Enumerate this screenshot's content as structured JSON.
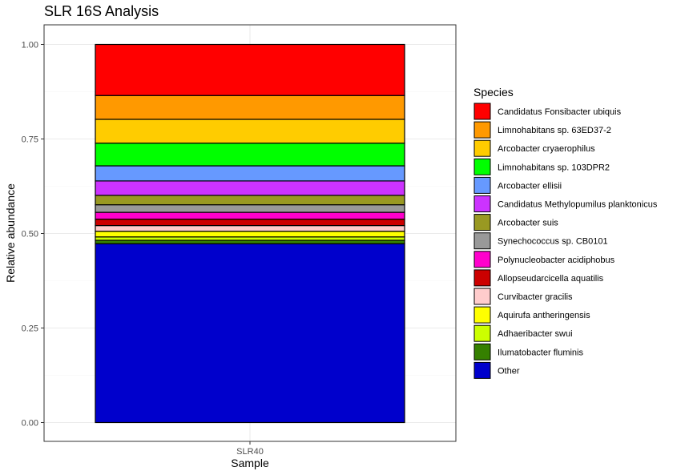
{
  "chart_data": {
    "type": "bar",
    "stacked": true,
    "title": "SLR 16S Analysis",
    "xlabel": "Sample",
    "ylabel": "Relative abundance",
    "categories": [
      "SLR40"
    ],
    "ylim": [
      0,
      1.05
    ],
    "yticks": [
      "0.00",
      "0.25",
      "0.50",
      "0.75",
      "1.00"
    ],
    "grid": true,
    "legend_title": "Species",
    "legend_position": "right",
    "series": [
      {
        "name": "Candidatus Fonsibacter ubiquis",
        "color": "#FF0000",
        "values": [
          0.135
        ]
      },
      {
        "name": "Limnohabitans sp. 63ED37-2",
        "color": "#FF9900",
        "values": [
          0.063
        ]
      },
      {
        "name": "Arcobacter cryaerophilus",
        "color": "#FFCC00",
        "values": [
          0.063
        ]
      },
      {
        "name": "Limnohabitans sp. 103DPR2",
        "color": "#00FF00",
        "values": [
          0.06
        ]
      },
      {
        "name": "Arcobacter ellisii",
        "color": "#6699FF",
        "values": [
          0.04
        ]
      },
      {
        "name": "Candidatus Methylopumilus planktonicus",
        "color": "#CC33FF",
        "values": [
          0.038
        ]
      },
      {
        "name": "Arcobacter suis",
        "color": "#999922",
        "values": [
          0.025
        ]
      },
      {
        "name": "Synechococcus sp. CB0101",
        "color": "#999999",
        "values": [
          0.02
        ]
      },
      {
        "name": "Polynucleobacter acidiphobus",
        "color": "#FF00CC",
        "values": [
          0.018
        ]
      },
      {
        "name": "Allopseudarcicella aquatilis",
        "color": "#CC0000",
        "values": [
          0.017
        ]
      },
      {
        "name": "Curvibacter gracilis",
        "color": "#FFCCCC",
        "values": [
          0.015
        ]
      },
      {
        "name": "Aquirufa antheringensis",
        "color": "#FFFF00",
        "values": [
          0.015
        ]
      },
      {
        "name": "Adhaeribacter swui",
        "color": "#CCFF00",
        "values": [
          0.009
        ]
      },
      {
        "name": "Ilumatobacter fluminis",
        "color": "#358000",
        "values": [
          0.009
        ]
      },
      {
        "name": "Other",
        "color": "#0000CC",
        "values": [
          0.473
        ]
      }
    ]
  }
}
